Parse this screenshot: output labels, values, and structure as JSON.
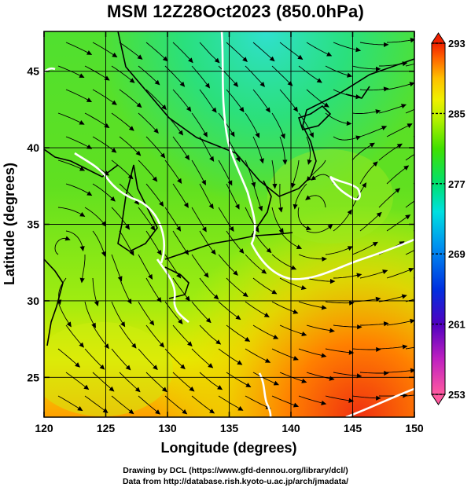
{
  "title": "MSM 12Z28Oct2023 (850.0hPa)",
  "map": {
    "x_label": "Longitude (degrees)",
    "y_label": "Latitude  (degrees)",
    "lon_range": [
      120,
      150
    ],
    "lat_range": [
      22.4,
      47.6
    ],
    "lon_ticks": [
      "120",
      "125",
      "130",
      "135",
      "140",
      "145",
      "150"
    ],
    "lat_ticks": [
      "25",
      "30",
      "35",
      "40",
      "45"
    ],
    "grid": true,
    "field": "temperature (shaded) with streamlines",
    "white_contour": "thick white isotherm contour"
  },
  "colorbar": {
    "min": 253,
    "max": 293,
    "tick_labels": [
      "293",
      "285",
      "277",
      "269",
      "261",
      "253"
    ],
    "colors": [
      "#ff5aa0",
      "#c020c0",
      "#5000c0",
      "#0030e0",
      "#0090f0",
      "#00e0e0",
      "#00e070",
      "#40e000",
      "#b0f000",
      "#f0f000",
      "#ffc000",
      "#ff6000",
      "#f02000"
    ]
  },
  "footer": {
    "line1": "Drawing by DCL (https://www.gfd-dennou.org/library/dcl/)",
    "line2": "Data from http://database.rish.kyoto-u.ac.jp/arch/jmadata/"
  }
}
